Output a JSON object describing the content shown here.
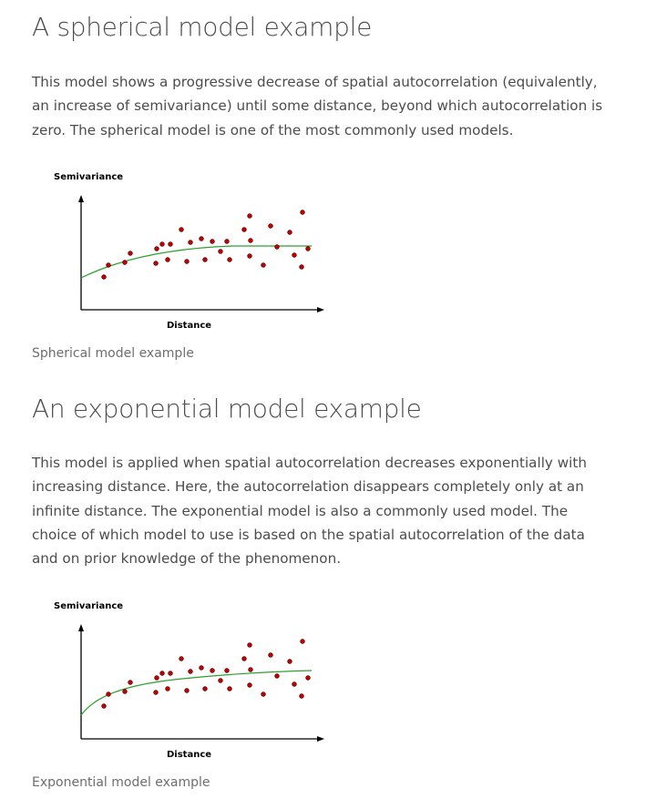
{
  "sections": [
    {
      "heading": "A spherical model example",
      "paragraph": "This model shows a progressive decrease of spatial autocorrelation (equivalently, an increase of semivariance) until some distance, beyond which autocorrelation is zero. The spherical model is one of the most commonly used models.",
      "figure": {
        "y_label": "Semivariance",
        "x_label": "Distance",
        "caption": "Spherical model example"
      }
    },
    {
      "heading": "An exponential model example",
      "paragraph": "This model is applied when spatial autocorrelation decreases exponentially with increasing distance. Here, the autocorrelation disappears completely only at an infinite distance. The exponential model is also a commonly used model. The choice of which model to use is based on the spatial autocorrelation of the data and on prior knowledge of the phenomenon.",
      "figure": {
        "y_label": "Semivariance",
        "x_label": "Distance",
        "caption": "Exponential model example"
      }
    }
  ]
}
